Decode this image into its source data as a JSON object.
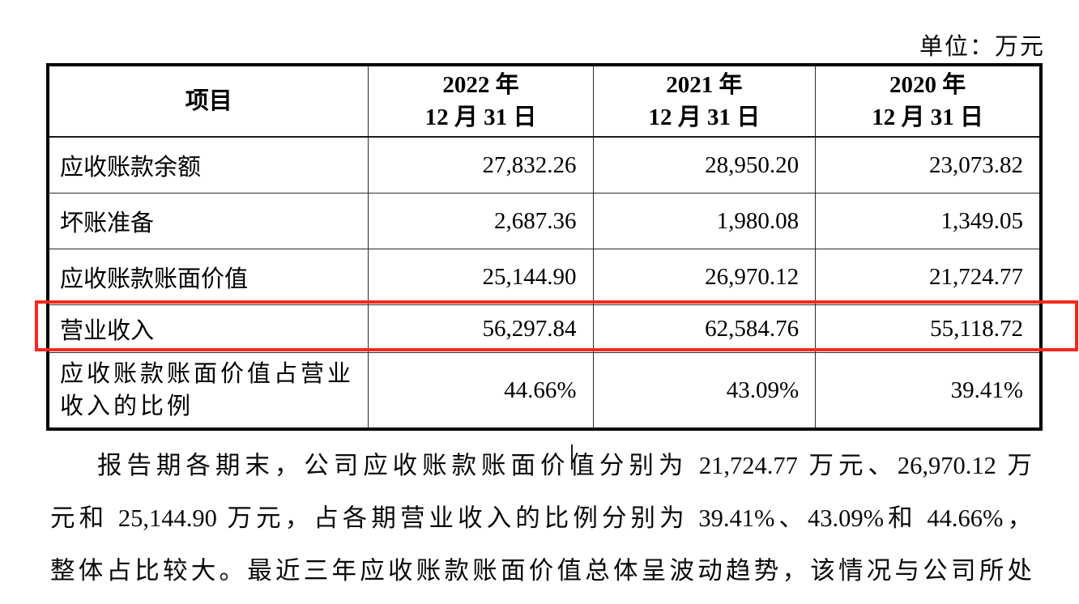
{
  "page": {
    "unit_label": "单位：万元"
  },
  "table": {
    "columns": [
      {
        "label": "项目"
      },
      {
        "line1": "2022 年",
        "line2": "12 月 31 日"
      },
      {
        "line1": "2021 年",
        "line2": "12 月 31 日"
      },
      {
        "line1": "2020 年",
        "line2": "12 月 31 日"
      }
    ],
    "rows": [
      {
        "label": "应收账款余额",
        "y2022": "27,832.26",
        "y2021": "28,950.20",
        "y2020": "23,073.82"
      },
      {
        "label": "坏账准备",
        "y2022": "2,687.36",
        "y2021": "1,980.08",
        "y2020": "1,349.05"
      },
      {
        "label": "应收账款账面价值",
        "y2022": "25,144.90",
        "y2021": "26,970.12",
        "y2020": "21,724.77"
      },
      {
        "label": "营业收入",
        "y2022": "56,297.84",
        "y2021": "62,584.76",
        "y2020": "55,118.72"
      },
      {
        "label": "应收账款账面价值占营业收入的比例",
        "y2022": "44.66%",
        "y2021": "43.09%",
        "y2020": "39.41%"
      }
    ],
    "highlighted_row_label": "营业收入",
    "highlight_color": "#f5281e"
  },
  "paragraph": {
    "lines": [
      "报告期各期末，公司应收账款账面价值分别为 21,724.77 万元、26,970.12 万",
      "元和 25,144.90 万元，占各期营业收入的比例分别为 39.41%、43.09%和 44.66%，",
      "整体占比较大。最近三年应收账款账面价值总体呈波动趋势，该情况与公司所处"
    ]
  }
}
